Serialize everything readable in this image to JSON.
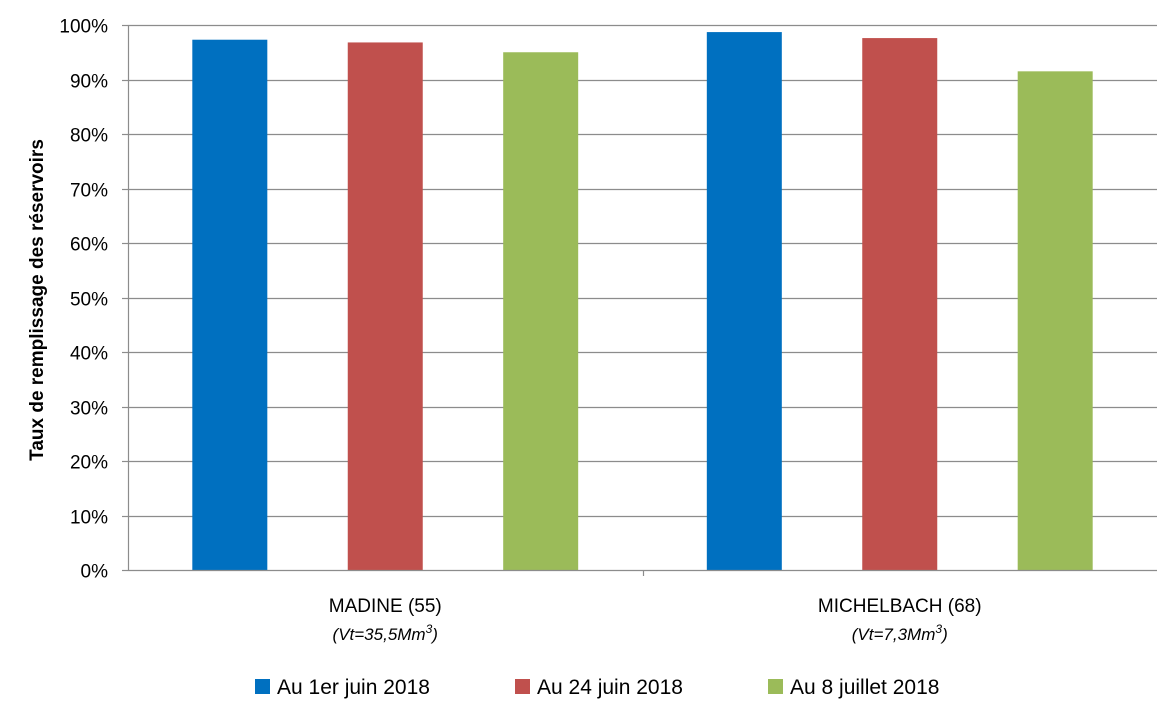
{
  "chart_data": {
    "type": "bar",
    "ylabel": "Taux de remplissage des réservoirs",
    "ylim": [
      0,
      100
    ],
    "ytick_step": 10,
    "ytick_format": "percent",
    "grid": true,
    "legend_position": "bottom",
    "categories": [
      {
        "name": "MADINE (55)",
        "sub": "(Vt=35,5Mm",
        "sub_sup": "3",
        "sub_end": ")"
      },
      {
        "name": "MICHELBACH (68)",
        "sub": "(Vt=7,3Mm",
        "sub_sup": "3",
        "sub_end": ")"
      }
    ],
    "series": [
      {
        "name": "Au 1er juin 2018",
        "color": "#0070C0",
        "values": [
          97.3,
          98.7
        ]
      },
      {
        "name": "Au 24 juin 2018",
        "color": "#C0504D",
        "values": [
          96.8,
          97.6
        ]
      },
      {
        "name": "Au 8 juillet 2018",
        "color": "#9BBB59",
        "values": [
          95.0,
          91.5
        ]
      }
    ]
  }
}
